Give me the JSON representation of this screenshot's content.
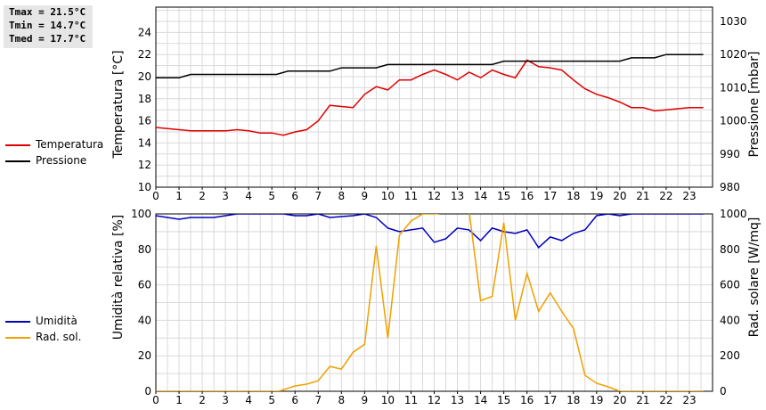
{
  "stats": {
    "tmax": "Tmax = 21.5°C",
    "tmin": "Tmin = 14.7°C",
    "tmed": "Tmed = 17.7°C"
  },
  "legend_top": [
    {
      "label": "Temperatura",
      "color": "#e00000"
    },
    {
      "label": "Pressione",
      "color": "#000000"
    }
  ],
  "legend_bottom": [
    {
      "label": "Umidità",
      "color": "#0000c0"
    },
    {
      "label": "Rad. sol.",
      "color": "#f0a000"
    }
  ],
  "chart_data": [
    {
      "type": "line",
      "xlim": [
        0,
        24
      ],
      "x_ticks": [
        "0",
        "1",
        "2",
        "3",
        "4",
        "5",
        "6",
        "7",
        "8",
        "9",
        "10",
        "11",
        "12",
        "13",
        "14",
        "15",
        "16",
        "17",
        "18",
        "19",
        "20",
        "21",
        "22",
        "23"
      ],
      "grid": true,
      "y_left": {
        "label": "Temperatura [°C]",
        "lim": [
          10,
          25
        ],
        "ticks": [
          "10",
          "12",
          "14",
          "16",
          "18",
          "20",
          "22",
          "24"
        ]
      },
      "y_right": {
        "label": "Pressione [mbar]",
        "lim": [
          980,
          1030
        ],
        "ticks": [
          "980",
          "990",
          "1000",
          "1010",
          "1020",
          "1030"
        ]
      },
      "series": [
        {
          "name": "Temperatura",
          "axis": "left",
          "color": "#e00000",
          "points": [
            [
              0,
              15.4
            ],
            [
              0.5,
              15.3
            ],
            [
              1,
              15.2
            ],
            [
              1.5,
              15.1
            ],
            [
              2,
              15.1
            ],
            [
              2.5,
              15.1
            ],
            [
              3,
              15.1
            ],
            [
              3.5,
              15.2
            ],
            [
              4,
              15.1
            ],
            [
              4.5,
              14.9
            ],
            [
              5,
              14.9
            ],
            [
              5.5,
              14.7
            ],
            [
              6,
              15.0
            ],
            [
              6.5,
              15.2
            ],
            [
              7,
              16.0
            ],
            [
              7.5,
              17.4
            ],
            [
              8,
              17.3
            ],
            [
              8.5,
              17.2
            ],
            [
              9,
              18.4
            ],
            [
              9.5,
              19.1
            ],
            [
              10,
              18.8
            ],
            [
              10.5,
              19.7
            ],
            [
              11,
              19.7
            ],
            [
              11.5,
              20.2
            ],
            [
              12,
              20.6
            ],
            [
              12.5,
              20.2
            ],
            [
              13,
              19.7
            ],
            [
              13.5,
              20.4
            ],
            [
              14,
              19.9
            ],
            [
              14.5,
              20.6
            ],
            [
              15,
              20.2
            ],
            [
              15.5,
              19.9
            ],
            [
              16,
              21.5
            ],
            [
              16.5,
              20.9
            ],
            [
              17,
              20.8
            ],
            [
              17.5,
              20.6
            ],
            [
              18,
              19.7
            ],
            [
              18.5,
              18.9
            ],
            [
              19,
              18.4
            ],
            [
              19.5,
              18.1
            ],
            [
              20,
              17.7
            ],
            [
              20.5,
              17.2
            ],
            [
              21,
              17.2
            ],
            [
              21.5,
              16.9
            ],
            [
              22,
              17.0
            ],
            [
              22.5,
              17.1
            ],
            [
              23,
              17.2
            ],
            [
              23.6,
              17.2
            ]
          ]
        },
        {
          "name": "Pressione",
          "axis": "right",
          "color": "#000000",
          "points": [
            [
              0,
              1013
            ],
            [
              1,
              1013
            ],
            [
              1.5,
              1014
            ],
            [
              5.2,
              1014
            ],
            [
              5.7,
              1015
            ],
            [
              7.5,
              1015
            ],
            [
              8,
              1016
            ],
            [
              9.5,
              1016
            ],
            [
              10,
              1017
            ],
            [
              14.5,
              1017
            ],
            [
              15,
              1018
            ],
            [
              20,
              1018
            ],
            [
              20.5,
              1019
            ],
            [
              21.5,
              1019
            ],
            [
              22,
              1020
            ],
            [
              23.6,
              1020
            ]
          ]
        }
      ]
    },
    {
      "type": "line",
      "xlim": [
        0,
        24
      ],
      "x_ticks": [
        "0",
        "1",
        "2",
        "3",
        "4",
        "5",
        "6",
        "7",
        "8",
        "9",
        "10",
        "11",
        "12",
        "13",
        "14",
        "15",
        "16",
        "17",
        "18",
        "19",
        "20",
        "21",
        "22",
        "23"
      ],
      "grid": true,
      "y_left": {
        "label": "Umidità relativa [%]",
        "lim": [
          0,
          100
        ],
        "ticks": [
          "0",
          "20",
          "40",
          "60",
          "80",
          "100"
        ]
      },
      "y_right": {
        "label": "Rad. solare [W/mq]",
        "lim": [
          0,
          1000
        ],
        "ticks": [
          "0",
          "200",
          "400",
          "600",
          "800",
          "1000"
        ]
      },
      "series": [
        {
          "name": "Umidità",
          "axis": "left",
          "color": "#0000c0",
          "points": [
            [
              0,
              99
            ],
            [
              1,
              97
            ],
            [
              1.5,
              98
            ],
            [
              2.5,
              98
            ],
            [
              3,
              99
            ],
            [
              3.5,
              100
            ],
            [
              5.5,
              100
            ],
            [
              6,
              99
            ],
            [
              6.5,
              99
            ],
            [
              7,
              100
            ],
            [
              7.5,
              98
            ],
            [
              8.5,
              99
            ],
            [
              9,
              100
            ],
            [
              9.5,
              98
            ],
            [
              10,
              92
            ],
            [
              10.5,
              90
            ],
            [
              11,
              91
            ],
            [
              11.5,
              92
            ],
            [
              12,
              84
            ],
            [
              12.5,
              86
            ],
            [
              13,
              92
            ],
            [
              13.5,
              91
            ],
            [
              14,
              85
            ],
            [
              14.5,
              92
            ],
            [
              15,
              90
            ],
            [
              15.5,
              89
            ],
            [
              16,
              91
            ],
            [
              16.5,
              81
            ],
            [
              17,
              87
            ],
            [
              17.5,
              85
            ],
            [
              18,
              89
            ],
            [
              18.5,
              91
            ],
            [
              19,
              99
            ],
            [
              19.5,
              100
            ],
            [
              20,
              99
            ],
            [
              20.5,
              100
            ],
            [
              23.6,
              100
            ]
          ]
        },
        {
          "name": "Rad. sol.",
          "axis": "right",
          "color": "#f0a000",
          "points": [
            [
              0,
              0
            ],
            [
              5.3,
              0
            ],
            [
              6,
              30
            ],
            [
              6.5,
              40
            ],
            [
              7,
              60
            ],
            [
              7.5,
              140
            ],
            [
              8,
              125
            ],
            [
              8.5,
              220
            ],
            [
              9,
              265
            ],
            [
              9.5,
              820
            ],
            [
              10,
              300
            ],
            [
              10.5,
              880
            ],
            [
              11,
              960
            ],
            [
              11.5,
              1000
            ],
            [
              12,
              1000
            ],
            [
              13.5,
              1020
            ],
            [
              14,
              510
            ],
            [
              14.5,
              535
            ],
            [
              15,
              950
            ],
            [
              15.5,
              400
            ],
            [
              16,
              665
            ],
            [
              16.5,
              450
            ],
            [
              17,
              555
            ],
            [
              17.5,
              450
            ],
            [
              18,
              355
            ],
            [
              18.5,
              90
            ],
            [
              19,
              45
            ],
            [
              19.5,
              25
            ],
            [
              20,
              0
            ],
            [
              23.6,
              0
            ]
          ]
        }
      ]
    }
  ]
}
